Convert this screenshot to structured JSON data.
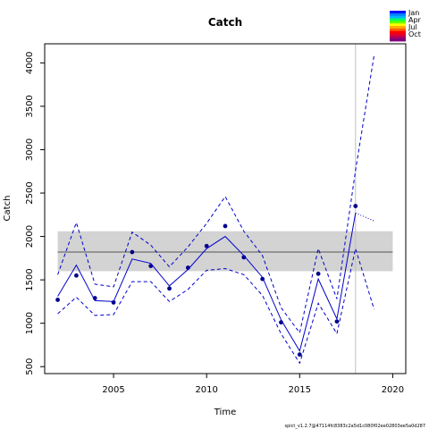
{
  "chart_data": {
    "type": "line",
    "title": "Catch",
    "xlabel": "Time",
    "ylabel": "Catch",
    "xlim": [
      2001.3,
      2020.7
    ],
    "ylim": [
      420,
      4220
    ],
    "xticks": [
      2005,
      2010,
      2015,
      2020
    ],
    "yticks": [
      500,
      1000,
      1500,
      2000,
      2500,
      3000,
      3500,
      4000
    ],
    "grid": false,
    "series": [
      {
        "role": "observed",
        "style": "points",
        "x": [
          2002,
          2003,
          2004,
          2005,
          2006,
          2007,
          2008,
          2009,
          2010,
          2011,
          2012,
          2013,
          2014,
          2015,
          2016,
          2017,
          2018
        ],
        "values": [
          1270,
          1550,
          1290,
          1240,
          1820,
          1660,
          1400,
          1640,
          1890,
          2120,
          1760,
          1510,
          1010,
          640,
          1570,
          1020,
          2350
        ]
      },
      {
        "role": "predicted",
        "style": "solid",
        "x": [
          2002,
          2003,
          2004,
          2005,
          2006,
          2007,
          2008,
          2009,
          2010,
          2011,
          2012,
          2013,
          2014,
          2015,
          2016,
          2017,
          2018
        ],
        "values": [
          1310,
          1670,
          1260,
          1250,
          1740,
          1690,
          1430,
          1620,
          1860,
          2000,
          1780,
          1530,
          1040,
          680,
          1510,
          1050,
          2270
        ]
      },
      {
        "role": "upper-ci",
        "style": "dashed",
        "x": [
          2002,
          2003,
          2004,
          2005,
          2006,
          2007,
          2008,
          2009,
          2010,
          2011,
          2012,
          2013,
          2014,
          2015,
          2016,
          2017,
          2018,
          2019
        ],
        "values": [
          1560,
          2160,
          1450,
          1420,
          2050,
          1900,
          1650,
          1880,
          2150,
          2460,
          2060,
          1780,
          1180,
          890,
          1860,
          1280,
          2760,
          4090
        ]
      },
      {
        "role": "lower-ci",
        "style": "dashed",
        "x": [
          2002,
          2003,
          2004,
          2005,
          2006,
          2007,
          2008,
          2009,
          2010,
          2011,
          2012,
          2013,
          2014,
          2015,
          2016,
          2017,
          2018,
          2019
        ],
        "values": [
          1110,
          1300,
          1090,
          1100,
          1480,
          1480,
          1250,
          1390,
          1610,
          1630,
          1560,
          1320,
          880,
          540,
          1230,
          880,
          1860,
          1160
        ]
      },
      {
        "role": "forecast",
        "style": "dotted",
        "x": [
          2018,
          2019
        ],
        "values": [
          2270,
          2180
        ]
      }
    ],
    "reference_band": {
      "x": [
        2002,
        2020
      ],
      "lower": 1600,
      "upper": 2060,
      "mean": 1820,
      "color": "#d3d3d3"
    },
    "vline": {
      "x": 2018,
      "color": "#bebebe"
    },
    "legend": {
      "position": "top-right",
      "labels": [
        "Jan",
        "Apr",
        "Jul",
        "Oct"
      ],
      "colors": [
        "#0000ff",
        "#0080ff",
        "#00b4ff",
        "#00ff60",
        "#60ff00",
        "#ffff00",
        "#ffb000",
        "#ff6000",
        "#ff0000",
        "#e00030",
        "#b00060",
        "#800080"
      ]
    },
    "footer": "spict_v1.2.7@47114fc8383c2a5d1c080f02ee02803ee5a0d287"
  },
  "colors": {
    "series": "#0000cc",
    "mean_line": "#555555",
    "point": "#00008b"
  }
}
